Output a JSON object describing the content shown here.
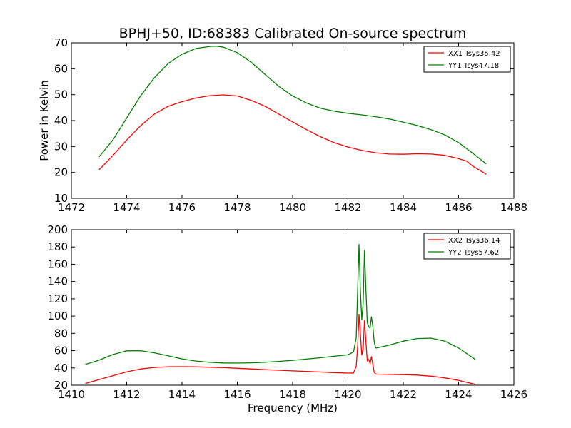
{
  "figure": {
    "title": "BPHJ+50, ID:68383 Calibrated On-source spectrum",
    "ylabel": "Power in Kelvin",
    "xlabel": "Frequency (MHz)"
  },
  "chart_data": [
    {
      "type": "line",
      "xlim": [
        1472,
        1488
      ],
      "ylim": [
        10,
        70
      ],
      "xticks": [
        1472,
        1474,
        1476,
        1478,
        1480,
        1482,
        1484,
        1486,
        1488
      ],
      "yticks": [
        10,
        20,
        30,
        40,
        50,
        60,
        70
      ],
      "grid": false,
      "legend_position": "top-right",
      "series": [
        {
          "name": "XX1 Tsys35.42",
          "color": "#ff0000",
          "x": [
            1473.0,
            1473.5,
            1474.0,
            1474.5,
            1475.0,
            1475.5,
            1476.0,
            1476.5,
            1477.0,
            1477.5,
            1478.0,
            1478.5,
            1479.0,
            1479.5,
            1480.0,
            1480.5,
            1481.0,
            1481.5,
            1482.0,
            1482.5,
            1483.0,
            1483.5,
            1484.0,
            1484.5,
            1485.0,
            1485.5,
            1486.0,
            1486.3,
            1486.5,
            1487.0
          ],
          "values": [
            21.0,
            26.5,
            32.5,
            38.0,
            42.5,
            45.5,
            47.3,
            48.7,
            49.6,
            49.9,
            49.5,
            47.8,
            45.5,
            42.5,
            39.5,
            36.5,
            33.8,
            31.5,
            29.8,
            28.5,
            27.6,
            27.1,
            27.0,
            27.2,
            27.1,
            26.6,
            25.3,
            24.3,
            22.5,
            19.3
          ]
        },
        {
          "name": "YY1 Tsys47.18",
          "color": "#008000",
          "x": [
            1473.0,
            1473.5,
            1474.0,
            1474.5,
            1475.0,
            1475.5,
            1476.0,
            1476.5,
            1477.0,
            1477.25,
            1477.5,
            1478.0,
            1478.5,
            1479.0,
            1479.5,
            1480.0,
            1480.5,
            1481.0,
            1481.5,
            1482.0,
            1482.5,
            1483.0,
            1483.5,
            1484.0,
            1484.5,
            1485.0,
            1485.5,
            1486.0,
            1486.5,
            1487.0
          ],
          "values": [
            26.0,
            32.5,
            41.0,
            49.5,
            56.5,
            62.0,
            65.6,
            67.8,
            68.6,
            68.7,
            68.3,
            66.2,
            62.5,
            57.8,
            53.2,
            49.5,
            46.8,
            44.8,
            43.6,
            42.8,
            42.2,
            41.5,
            40.6,
            39.4,
            38.1,
            36.5,
            34.5,
            31.5,
            27.5,
            23.3
          ]
        }
      ]
    },
    {
      "type": "line",
      "xlim": [
        1410,
        1426
      ],
      "ylim": [
        20,
        200
      ],
      "xticks": [
        1410,
        1412,
        1414,
        1416,
        1418,
        1420,
        1422,
        1424,
        1426
      ],
      "yticks": [
        20,
        40,
        60,
        80,
        100,
        120,
        140,
        160,
        180,
        200
      ],
      "grid": false,
      "legend_position": "top-right",
      "series": [
        {
          "name": "XX2 Tsys36.14",
          "color": "#ff0000",
          "x": [
            1410.5,
            1411.0,
            1411.5,
            1412.0,
            1412.5,
            1413.0,
            1413.5,
            1414.0,
            1414.5,
            1415.0,
            1415.5,
            1416.0,
            1416.5,
            1417.0,
            1417.5,
            1418.0,
            1418.5,
            1419.0,
            1419.5,
            1420.0,
            1420.2,
            1420.3,
            1420.35,
            1420.4,
            1420.45,
            1420.5,
            1420.55,
            1420.6,
            1420.65,
            1420.7,
            1420.75,
            1420.8,
            1420.85,
            1420.9,
            1420.95,
            1421.0,
            1421.1,
            1421.5,
            1422.0,
            1422.5,
            1423.0,
            1423.5,
            1424.0,
            1424.6
          ],
          "values": [
            22.0,
            26.5,
            31.0,
            35.5,
            38.8,
            40.6,
            41.4,
            41.5,
            41.3,
            40.8,
            40.3,
            39.6,
            38.8,
            38.0,
            37.3,
            36.6,
            36.0,
            35.3,
            34.6,
            34.0,
            34.2,
            42.0,
            65.0,
            102.0,
            80.0,
            55.0,
            62.0,
            95.0,
            70.0,
            48.0,
            50.0,
            45.0,
            53.0,
            44.0,
            35.0,
            33.0,
            32.8,
            32.5,
            32.2,
            31.7,
            30.5,
            28.5,
            25.5,
            21.0
          ]
        },
        {
          "name": "YY2 Tsys57.62",
          "color": "#008000",
          "x": [
            1410.5,
            1411.0,
            1411.5,
            1412.0,
            1412.5,
            1413.0,
            1413.5,
            1414.0,
            1414.5,
            1415.0,
            1415.5,
            1416.0,
            1416.5,
            1417.0,
            1417.5,
            1418.0,
            1418.5,
            1419.0,
            1419.5,
            1420.0,
            1420.2,
            1420.3,
            1420.35,
            1420.4,
            1420.45,
            1420.5,
            1420.55,
            1420.6,
            1420.65,
            1420.7,
            1420.75,
            1420.8,
            1420.85,
            1420.9,
            1420.95,
            1421.0,
            1421.1,
            1421.5,
            1422.0,
            1422.5,
            1423.0,
            1423.5,
            1424.0,
            1424.6
          ],
          "values": [
            44.0,
            49.0,
            55.5,
            59.8,
            60.0,
            57.5,
            54.0,
            50.5,
            48.0,
            46.5,
            45.8,
            45.6,
            45.9,
            46.6,
            47.6,
            48.8,
            50.2,
            51.8,
            53.5,
            55.2,
            58.5,
            75.0,
            130.0,
            183.0,
            130.0,
            96.0,
            115.0,
            176.0,
            130.0,
            92.0,
            88.0,
            86.0,
            99.0,
            88.0,
            70.0,
            63.0,
            63.5,
            66.5,
            71.0,
            74.0,
            74.5,
            71.0,
            63.0,
            50.0
          ]
        }
      ]
    }
  ]
}
